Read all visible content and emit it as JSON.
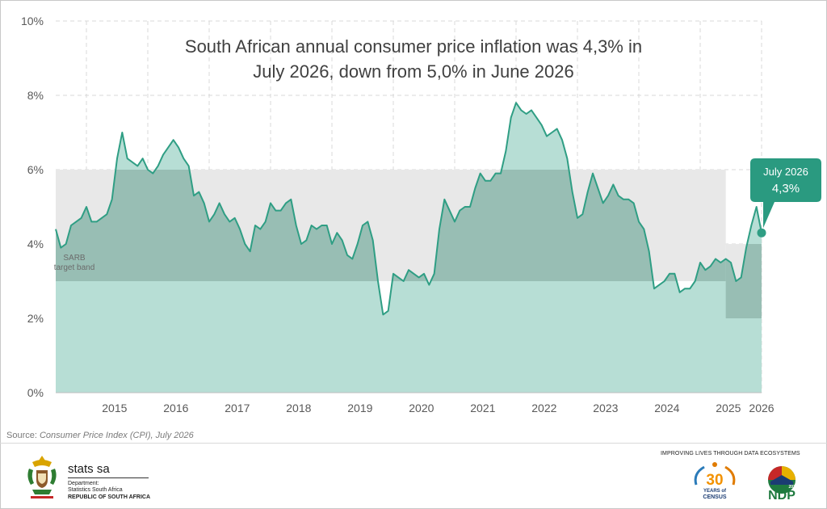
{
  "chart_data": {
    "type": "area",
    "title": "South African annual consumer price inflation was 4,3% in July 2026, down from 5,0% in June 2026",
    "title_lines": [
      "South African annual consumer price inflation was 4,3% in",
      "July 2026, down from 5,0% in June 2026"
    ],
    "y_ticks": [
      "0%",
      "2%",
      "4%",
      "6%",
      "8%",
      "10%"
    ],
    "ylim": [
      0,
      10
    ],
    "x_ticks": [
      "2015",
      "2016",
      "2017",
      "2018",
      "2019",
      "2020",
      "2021",
      "2022",
      "2023",
      "2024",
      "2025",
      "2026"
    ],
    "grid": true,
    "start": "2014-07",
    "series": [
      {
        "values": [
          4.4,
          3.9,
          4.0,
          4.5,
          4.6,
          4.7,
          5.0,
          4.6,
          4.6,
          4.7,
          4.8,
          5.2,
          6.3,
          7.0,
          6.3,
          6.2,
          6.1,
          6.3,
          6.0,
          5.9,
          6.1,
          6.4,
          6.6,
          6.8,
          6.6,
          6.3,
          6.1,
          5.3,
          5.4,
          5.1,
          4.6,
          4.8,
          5.1,
          4.8,
          4.6,
          4.7,
          4.4,
          4.0,
          3.8,
          4.5,
          4.4,
          4.6,
          5.1,
          4.9,
          4.9,
          5.1,
          5.2,
          4.5,
          4.0,
          4.1,
          4.5,
          4.4,
          4.5,
          4.5,
          4.0,
          4.3,
          4.1,
          3.7,
          3.6,
          4.0,
          4.5,
          4.6,
          4.1,
          3.0,
          2.1,
          2.2,
          3.2,
          3.1,
          3.0,
          3.3,
          3.2,
          3.1,
          3.2,
          2.9,
          3.2,
          4.4,
          5.2,
          4.9,
          4.6,
          4.9,
          5.0,
          5.0,
          5.5,
          5.9,
          5.7,
          5.7,
          5.9,
          5.9,
          6.5,
          7.4,
          7.8,
          7.6,
          7.5,
          7.6,
          7.4,
          7.2,
          6.9,
          7.0,
          7.1,
          6.8,
          6.3,
          5.4,
          4.7,
          4.8,
          5.4,
          5.9,
          5.5,
          5.1,
          5.3,
          5.6,
          5.3,
          5.2,
          5.2,
          5.1,
          4.6,
          4.4,
          3.8,
          2.8,
          2.9,
          3.0,
          3.2,
          3.2,
          2.7,
          2.8,
          2.8,
          3.0,
          3.5,
          3.3,
          3.4,
          3.6,
          3.5,
          3.6,
          3.5,
          3.0,
          3.1,
          3.9,
          4.5,
          5.0,
          4.3
        ]
      }
    ],
    "target_band": {
      "label_lines": [
        "SARB",
        "target band"
      ],
      "lower": 3,
      "upper": 6,
      "lower_from_2025_06": 2,
      "upper_from_2025_06": 4
    },
    "callout": {
      "line1": "July 2026",
      "line2": "4,3%",
      "value": 4.3
    },
    "colors": {
      "line": "#2f9e84",
      "area": "#b7ded5",
      "band": "#e8e8e8",
      "band_overlap": "#98beb4",
      "callout_bg": "#2a9a80",
      "grid": "#d9d9d9",
      "axis_text": "#595959",
      "title": "#404040"
    }
  },
  "footer": {
    "source_label": "Source:",
    "source_text": "Consumer Price Index (CPI), July 2026",
    "brand_name": "stats sa",
    "department_line1": "Department:",
    "department_line2": "Statistics South Africa",
    "country": "REPUBLIC OF SOUTH AFRICA",
    "tagline": "IMPROVING LIVES THROUGH DATA ECOSYSTEMS",
    "census_logo": {
      "number": "30",
      "line1": "YEARS of",
      "line2": "CENSUS"
    },
    "ndp_logo": {
      "text": "NDP",
      "year": "2030"
    }
  }
}
